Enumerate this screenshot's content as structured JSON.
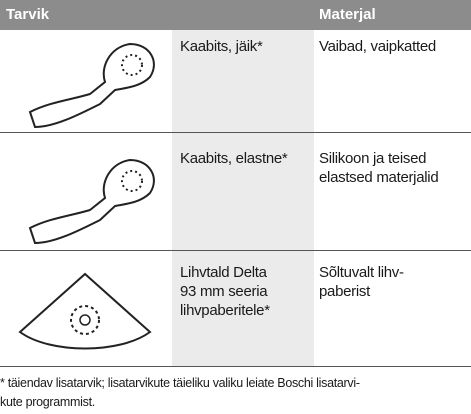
{
  "header": {
    "tool": "Tarvik",
    "material": "Materjal"
  },
  "rows": [
    {
      "name": [
        "Kaabits, jäik*"
      ],
      "material": [
        "Vaibad, vaipkatted"
      ]
    },
    {
      "name": [
        "Kaabits, elastne*"
      ],
      "material": [
        "Silikoon ja teised",
        "elastsed materjalid"
      ]
    },
    {
      "name": [
        "Lihvtald Delta",
        "93 mm seeria",
        "lihvpaberitele*"
      ],
      "material": [
        "Sõltuvalt lihv-",
        "paberist"
      ]
    }
  ],
  "footnote": [
    "* täiendav lisatarvik; lisatarvikute täieliku valiku leiate Boschi lisatarvi-",
    "kute programmist."
  ]
}
